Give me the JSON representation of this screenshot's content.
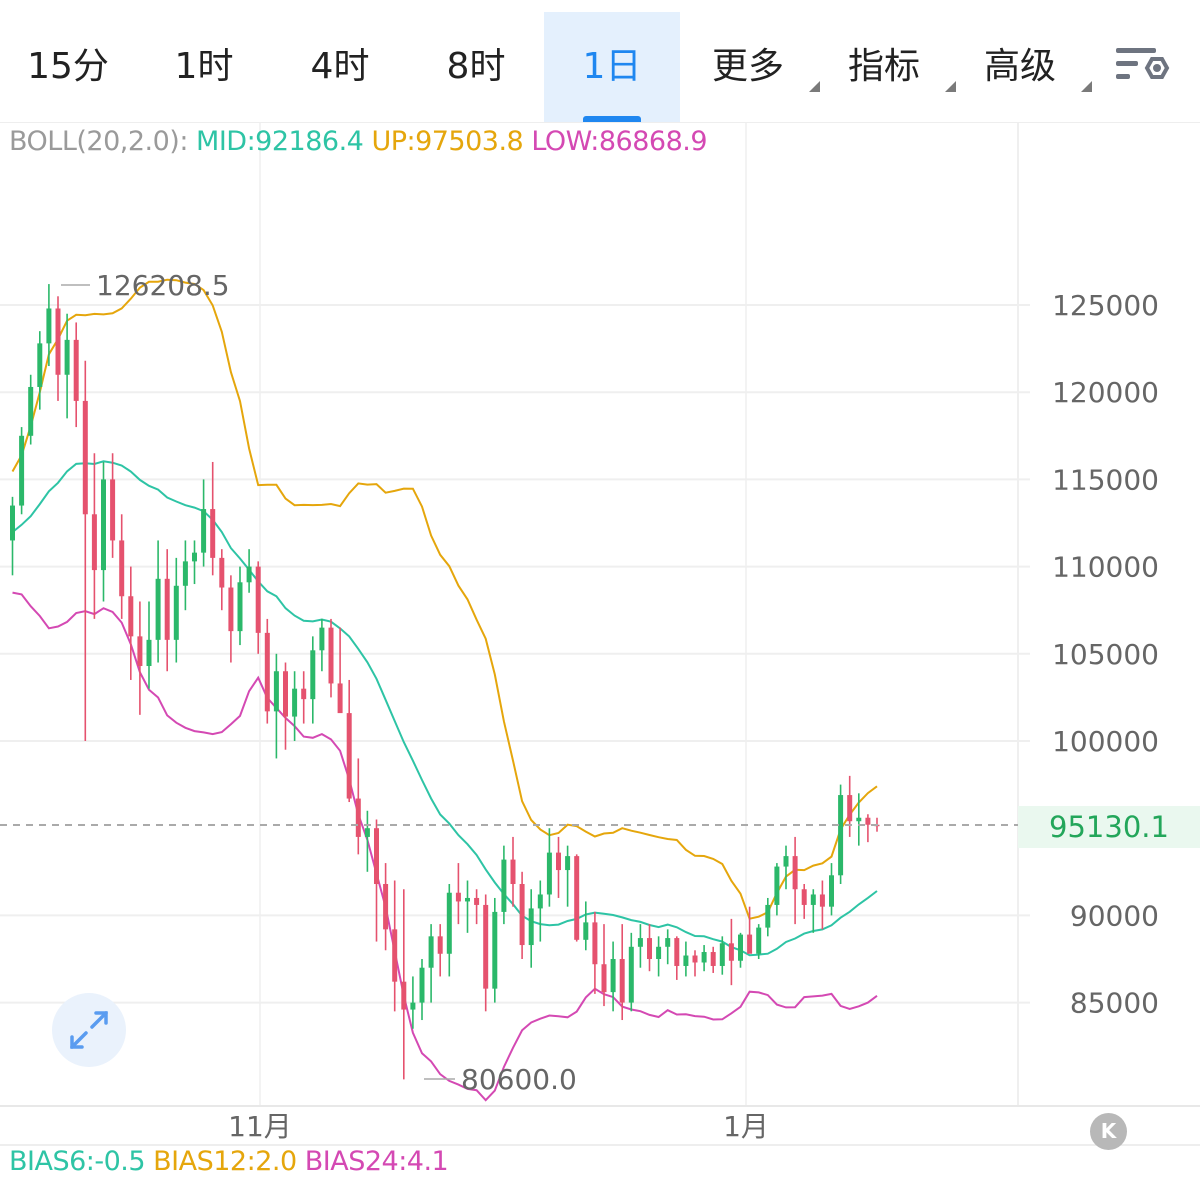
{
  "tabs": [
    {
      "label": "15分",
      "active": false,
      "dropdown": false
    },
    {
      "label": "1时",
      "active": false,
      "dropdown": false
    },
    {
      "label": "4时",
      "active": false,
      "dropdown": false
    },
    {
      "label": "8时",
      "active": false,
      "dropdown": false
    },
    {
      "label": "1日",
      "active": true,
      "dropdown": false
    },
    {
      "label": "更多",
      "active": false,
      "dropdown": true
    },
    {
      "label": "指标",
      "active": false,
      "dropdown": true
    },
    {
      "label": "高级",
      "active": false,
      "dropdown": true
    }
  ],
  "settings_icon": "chart-settings-icon",
  "boll": {
    "name": "BOLL(20,2.0):",
    "mid": "MID:92186.4",
    "up": "UP:97503.8",
    "low": "LOW:86868.9"
  },
  "current_price": "95130.1",
  "bias": {
    "b6": "BIAS6:-0.5",
    "b12": "BIAS12:2.0",
    "b24": "BIAS24:4.1"
  },
  "expand_icon": "expand-arrows-icon",
  "k_button": "K",
  "colors": {
    "up": "#2bb86a",
    "down": "#e5526e",
    "mid": "#2ec4a5",
    "upper": "#e5a60c",
    "lower": "#d449b3",
    "accent": "#1f87f0",
    "grid": "#efefef"
  },
  "chart_data": {
    "type": "candlestick",
    "interval": "1日",
    "y_ticks": [
      "125000",
      "120000",
      "115000",
      "110000",
      "105000",
      "100000",
      "90000",
      "85000"
    ],
    "x_ticks": [
      "11月",
      "1月"
    ],
    "annotations": {
      "high": "126208.5",
      "low": "80600.0"
    },
    "current_price": 95130.1,
    "candles": [
      [
        111500,
        114000,
        109500,
        113500
      ],
      [
        113500,
        118000,
        113000,
        117500
      ],
      [
        117500,
        121000,
        117000,
        120300
      ],
      [
        120300,
        123500,
        119000,
        122800
      ],
      [
        122800,
        126200,
        121500,
        124800
      ],
      [
        124800,
        125500,
        119500,
        121000
      ],
      [
        121000,
        124500,
        118500,
        123000
      ],
      [
        123000,
        124000,
        118000,
        119500
      ],
      [
        119500,
        121800,
        100000,
        113000
      ],
      [
        113000,
        116500,
        107000,
        109800
      ],
      [
        109800,
        116000,
        108000,
        115000
      ],
      [
        115000,
        116500,
        110500,
        111500
      ],
      [
        111500,
        113000,
        107000,
        108300
      ],
      [
        108300,
        110000,
        103500,
        106000
      ],
      [
        106000,
        108000,
        101500,
        104300
      ],
      [
        104300,
        108000,
        103000,
        105800
      ],
      [
        105800,
        111500,
        104500,
        109300
      ],
      [
        109300,
        111000,
        104000,
        105800
      ],
      [
        105800,
        110500,
        104500,
        108900
      ],
      [
        108900,
        111500,
        107500,
        110300
      ],
      [
        110300,
        111500,
        109000,
        110800
      ],
      [
        110800,
        115000,
        110000,
        113300
      ],
      [
        113300,
        116000,
        109500,
        110500
      ],
      [
        110500,
        111000,
        107500,
        108800
      ],
      [
        108800,
        109500,
        104500,
        106300
      ],
      [
        106300,
        110000,
        105500,
        109100
      ],
      [
        109100,
        111000,
        108500,
        110000
      ],
      [
        110000,
        110300,
        105000,
        106200
      ],
      [
        106200,
        107000,
        101000,
        101700
      ],
      [
        101700,
        105000,
        99000,
        104000
      ],
      [
        104000,
        104500,
        99500,
        101400
      ],
      [
        101400,
        104000,
        100000,
        103000
      ],
      [
        103000,
        104000,
        101000,
        102400
      ],
      [
        102400,
        106000,
        101000,
        105200
      ],
      [
        105200,
        107000,
        104000,
        106500
      ],
      [
        106500,
        107000,
        102500,
        103300
      ],
      [
        103300,
        106500,
        102000,
        101600
      ],
      [
        101600,
        103500,
        96500,
        96700
      ],
      [
        96700,
        99000,
        93500,
        94500
      ],
      [
        94500,
        96000,
        92500,
        95000
      ],
      [
        95000,
        95500,
        88500,
        91800
      ],
      [
        91800,
        93000,
        88000,
        89200
      ],
      [
        89200,
        92000,
        84500,
        86200
      ],
      [
        86200,
        91500,
        80600,
        84600
      ],
      [
        84600,
        86500,
        83500,
        85000
      ],
      [
        85000,
        87500,
        84000,
        87000
      ],
      [
        87000,
        89500,
        85000,
        88800
      ],
      [
        88800,
        89500,
        86500,
        87800
      ],
      [
        87800,
        91800,
        86500,
        91300
      ],
      [
        91300,
        93000,
        89500,
        90800
      ],
      [
        90800,
        92000,
        89000,
        91000
      ],
      [
        91000,
        91500,
        89500,
        90600
      ],
      [
        90600,
        91200,
        84500,
        85800
      ],
      [
        85800,
        91000,
        85000,
        90200
      ],
      [
        90200,
        94000,
        89500,
        93200
      ],
      [
        93200,
        94500,
        90500,
        91800
      ],
      [
        91800,
        92500,
        87500,
        88300
      ],
      [
        88300,
        91500,
        87000,
        90400
      ],
      [
        90400,
        92000,
        88500,
        91200
      ],
      [
        91200,
        95000,
        90500,
        93600
      ],
      [
        93600,
        94500,
        91000,
        92600
      ],
      [
        92600,
        94000,
        90500,
        93400
      ],
      [
        93400,
        93500,
        88500,
        88600
      ],
      [
        88600,
        90800,
        88000,
        89600
      ],
      [
        89600,
        90200,
        85500,
        87200
      ],
      [
        87200,
        89500,
        84800,
        85600
      ],
      [
        85600,
        88500,
        84500,
        87500
      ],
      [
        87500,
        89500,
        84000,
        85000
      ],
      [
        85000,
        89000,
        84500,
        88200
      ],
      [
        88200,
        89500,
        87000,
        88700
      ],
      [
        88700,
        89500,
        86800,
        87500
      ],
      [
        87500,
        88800,
        86500,
        88200
      ],
      [
        88200,
        89200,
        87200,
        88700
      ],
      [
        88700,
        88800,
        86300,
        87100
      ],
      [
        87100,
        88500,
        86500,
        87700
      ],
      [
        87700,
        88000,
        86500,
        87300
      ],
      [
        87300,
        88300,
        86800,
        87900
      ],
      [
        87900,
        88200,
        86700,
        87100
      ],
      [
        87100,
        88800,
        86600,
        88400
      ],
      [
        88400,
        89800,
        86000,
        87400
      ],
      [
        87400,
        89000,
        87000,
        88900
      ],
      [
        88900,
        90500,
        88000,
        87800
      ],
      [
        87800,
        89500,
        87500,
        89300
      ],
      [
        89300,
        91000,
        88800,
        90600
      ],
      [
        90600,
        93000,
        90000,
        92800
      ],
      [
        92800,
        94000,
        91500,
        93400
      ],
      [
        93400,
        94500,
        89500,
        91500
      ],
      [
        91500,
        91800,
        89800,
        90600
      ],
      [
        90600,
        91500,
        89000,
        91200
      ],
      [
        91200,
        92000,
        89200,
        90500
      ],
      [
        90500,
        93000,
        90000,
        92300
      ],
      [
        92300,
        97500,
        91800,
        96900
      ],
      [
        96900,
        98000,
        94500,
        95400
      ],
      [
        95400,
        97000,
        94000,
        95600
      ],
      [
        95600,
        95800,
        94200,
        95200
      ],
      [
        95200,
        95600,
        94800,
        95130
      ]
    ]
  }
}
